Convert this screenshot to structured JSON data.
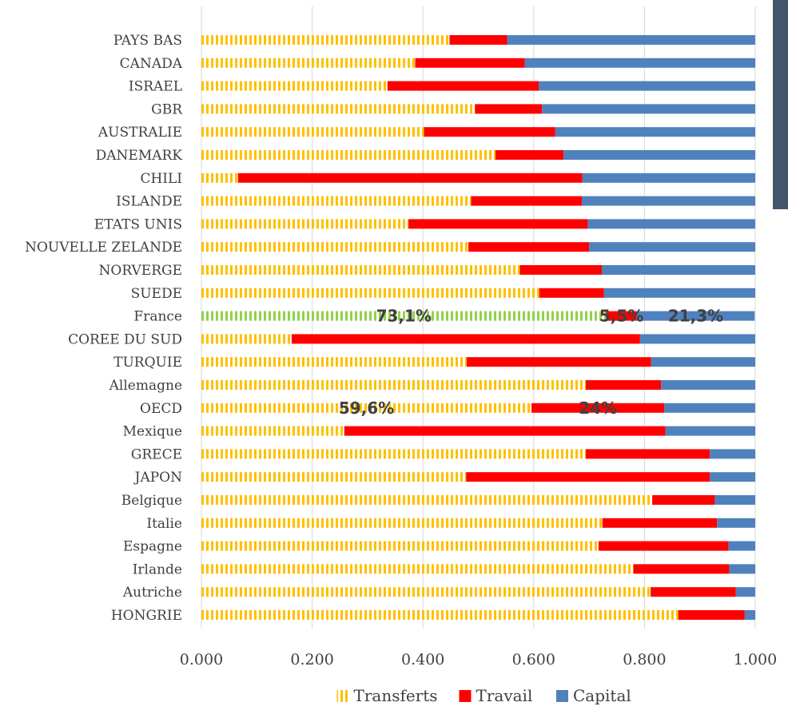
{
  "chart_data": {
    "type": "bar",
    "orientation": "horizontal",
    "stacked": true,
    "categories": [
      "PAYS BAS",
      "CANADA",
      "ISRAEL",
      "GBR",
      "AUSTRALIE",
      "DANEMARK",
      "CHILI",
      "ISLANDE",
      "ETATS UNIS",
      "NOUVELLE ZELANDE",
      "NORVERGE",
      "SUEDE",
      "France",
      "COREE DU SUD",
      "TURQUIE",
      "Allemagne",
      "OECD",
      "Mexique",
      "GRECE",
      "JAPON",
      "Belgique",
      "Italie",
      "Espagne",
      "Irlande",
      "Autriche",
      "HONGRIE"
    ],
    "series": [
      {
        "name": "Transferts",
        "color": "#ffc000",
        "pattern": "vertical-dashes",
        "values": [
          0.448,
          0.386,
          0.336,
          0.494,
          0.402,
          0.531,
          0.066,
          0.487,
          0.374,
          0.482,
          0.575,
          0.61,
          0.731,
          0.163,
          0.479,
          0.694,
          0.596,
          0.258,
          0.694,
          0.478,
          0.814,
          0.724,
          0.717,
          0.78,
          0.811,
          0.861
        ]
      },
      {
        "name": "Travail",
        "color": "#ff0000",
        "values": [
          0.104,
          0.198,
          0.273,
          0.121,
          0.237,
          0.123,
          0.622,
          0.2,
          0.324,
          0.218,
          0.148,
          0.117,
          0.055,
          0.629,
          0.333,
          0.136,
          0.24,
          0.58,
          0.224,
          0.44,
          0.113,
          0.207,
          0.235,
          0.173,
          0.154,
          0.12
        ]
      },
      {
        "name": "Capital",
        "color": "#4f81bd",
        "values": [
          0.448,
          0.416,
          0.391,
          0.385,
          0.361,
          0.346,
          0.312,
          0.313,
          0.302,
          0.3,
          0.277,
          0.273,
          0.213,
          0.208,
          0.188,
          0.17,
          0.164,
          0.162,
          0.082,
          0.082,
          0.073,
          0.069,
          0.048,
          0.047,
          0.035,
          0.019
        ]
      }
    ],
    "highlight": {
      "category": "France",
      "transferts_color": "#92d050"
    },
    "data_labels": [
      {
        "category": "France",
        "series": "Transferts",
        "text": "73,1%"
      },
      {
        "category": "France",
        "series": "Travail",
        "text": "5,5%"
      },
      {
        "category": "France",
        "series": "Capital",
        "text": "21,3%"
      },
      {
        "category": "OECD",
        "series": "Transferts",
        "text": "59,6%"
      },
      {
        "category": "OECD",
        "series": "Travail",
        "text": "24%"
      }
    ],
    "xlim": [
      0,
      1
    ],
    "xticks": [
      "0.000",
      "0.200",
      "0.400",
      "0.600",
      "0.800",
      "1.000"
    ],
    "grid": "vertical",
    "legend": "bottom",
    "title": "",
    "xlabel": "",
    "ylabel": ""
  }
}
